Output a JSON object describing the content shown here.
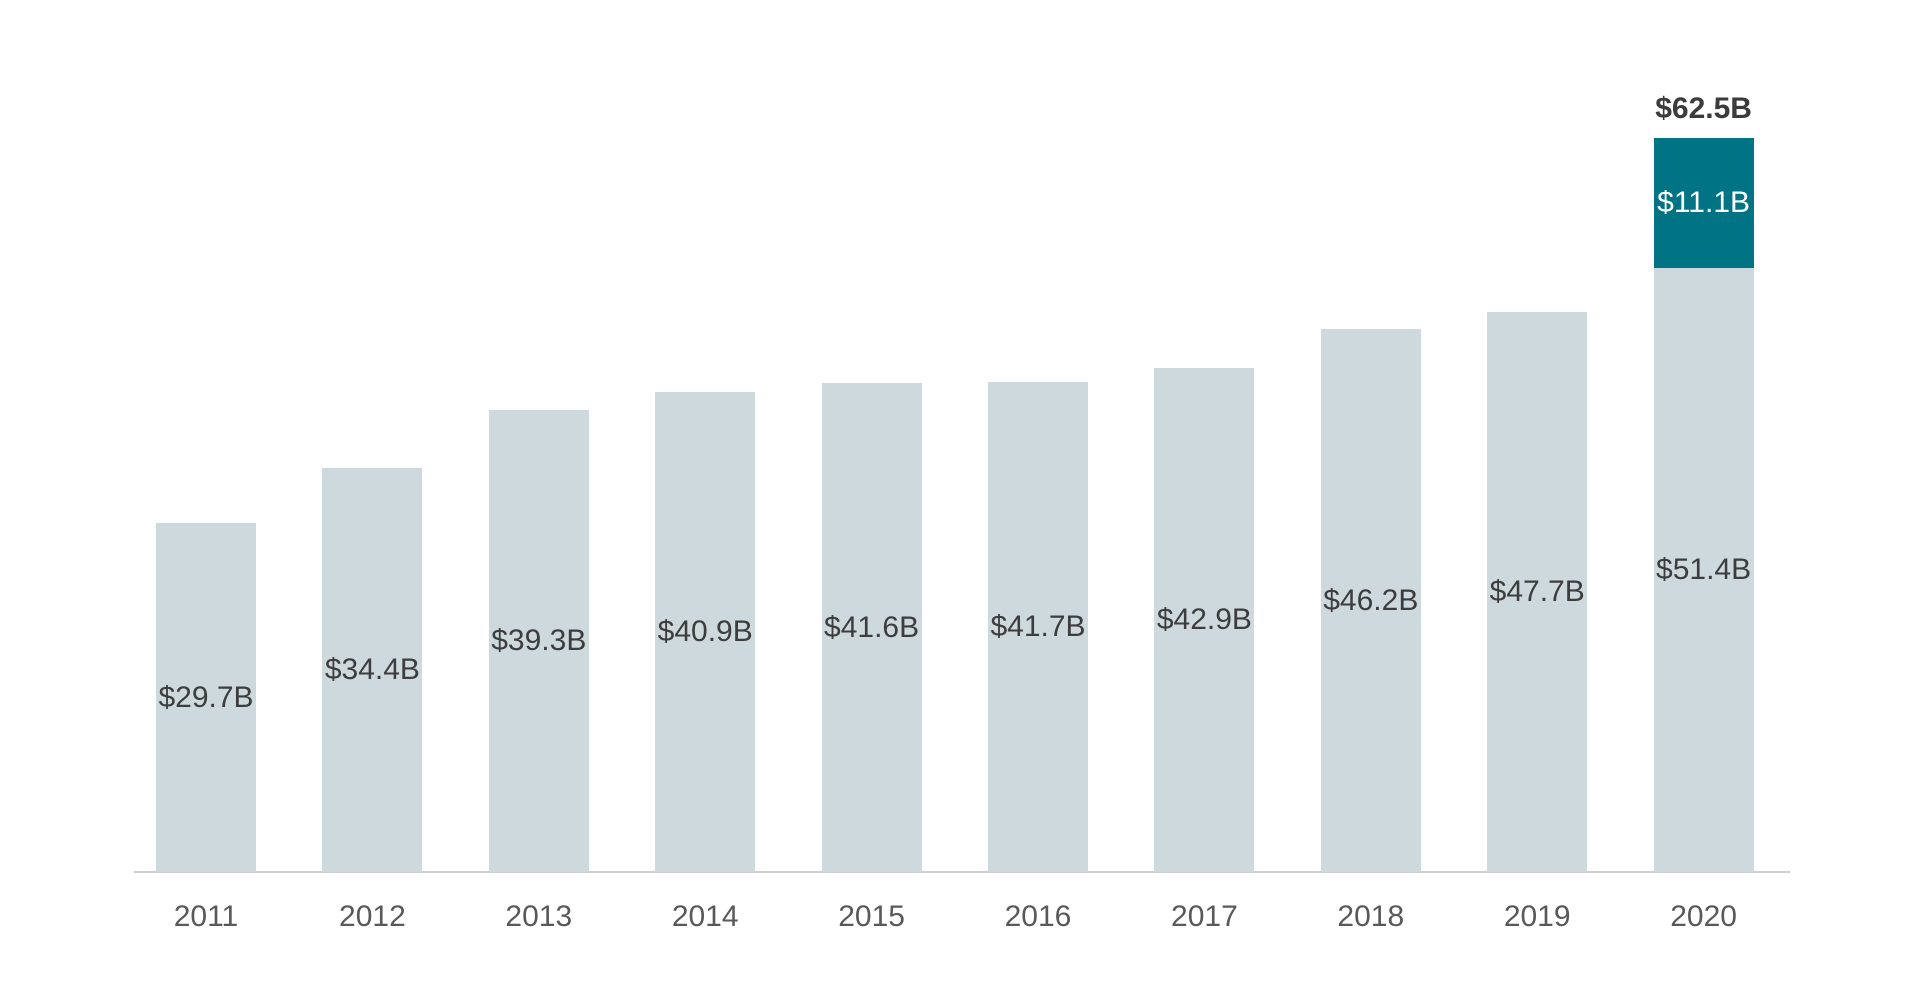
{
  "colors": {
    "background": "#ffffff",
    "bar_light": "#cdd9dd",
    "bar_teal": "#007485",
    "value_text": "#3d3d3d",
    "year_text": "#595959",
    "total_text": "#3b3b3b",
    "teal_label_text": "#ffffff",
    "axis_line": "#cbcfd0"
  },
  "chart_data": {
    "type": "bar",
    "stacked": true,
    "title": "",
    "xlabel": "",
    "ylabel": "",
    "categories": [
      "2011",
      "2012",
      "2013",
      "2014",
      "2015",
      "2016",
      "2017",
      "2018",
      "2019",
      "2020"
    ],
    "series": [
      {
        "name": "base",
        "values": [
          29.7,
          34.4,
          39.3,
          40.9,
          41.6,
          41.7,
          42.9,
          46.2,
          47.7,
          51.4
        ],
        "labels": [
          "$29.7B",
          "$34.4B",
          "$39.3B",
          "$40.9B",
          "$41.6B",
          "$41.7B",
          "$42.9B",
          "$46.2B",
          "$47.7B",
          "$51.4B"
        ]
      },
      {
        "name": "increase",
        "values": [
          null,
          null,
          null,
          null,
          null,
          null,
          null,
          null,
          null,
          11.1
        ],
        "labels": [
          null,
          null,
          null,
          null,
          null,
          null,
          null,
          null,
          null,
          "$11.1B"
        ]
      }
    ],
    "totals": [
      null,
      null,
      null,
      null,
      null,
      null,
      null,
      null,
      null,
      "$62.5B"
    ],
    "ylim": [
      0,
      66.5
    ],
    "grid": false,
    "legend": false,
    "axis_line": true,
    "value_label_position": "centered-in-segment",
    "total_label_position": "above-bar"
  }
}
